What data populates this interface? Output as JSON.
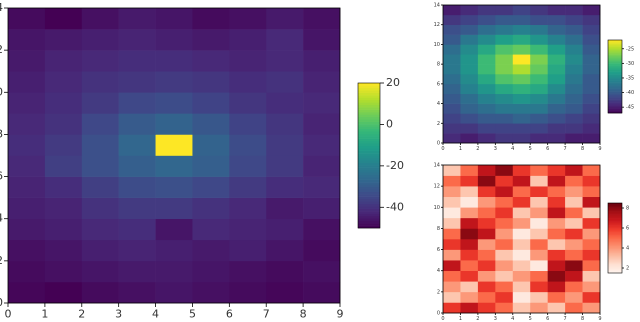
{
  "chart_data": [
    {
      "type": "heatmap",
      "colormap": "viridis",
      "xlim": [
        0,
        9
      ],
      "ylim": [
        0,
        14
      ],
      "xticks": [
        0,
        1,
        2,
        3,
        4,
        5,
        6,
        7,
        8,
        9
      ],
      "yticks": [
        0,
        2,
        4,
        6,
        8,
        10,
        12,
        14
      ],
      "zlim": [
        -50,
        20
      ],
      "zticks": [
        20,
        0,
        -20,
        -40
      ],
      "z": [
        [
          -49,
          -50,
          -48,
          -47,
          -46,
          -47,
          -48,
          -49,
          -48
        ],
        [
          -48,
          -47,
          -46,
          -45,
          -45,
          -46,
          -47,
          -48,
          -47
        ],
        [
          -47,
          -46,
          -44,
          -43,
          -44,
          -45,
          -44,
          -46,
          -48
        ],
        [
          -45,
          -44,
          -42,
          -41,
          -46,
          -42,
          -43,
          -44,
          -47
        ],
        [
          -44,
          -43,
          -40,
          -38,
          -38,
          -40,
          -42,
          -45,
          -44
        ],
        [
          -43,
          -41,
          -37,
          -34,
          -33,
          -35,
          -38,
          -41,
          -42
        ],
        [
          -42,
          -37,
          -33,
          -29,
          -27,
          -29,
          -35,
          -38,
          -43
        ],
        [
          -41,
          -38,
          -33,
          -27,
          20,
          -28,
          -34,
          -38,
          -42
        ],
        [
          -42,
          -40,
          -35,
          -30,
          -28,
          -31,
          -36,
          -39,
          -43
        ],
        [
          -43,
          -41,
          -38,
          -35,
          -34,
          -36,
          -39,
          -41,
          -42
        ],
        [
          -44,
          -42,
          -40,
          -39,
          -38,
          -39,
          -41,
          -40,
          -43
        ],
        [
          -45,
          -43,
          -42,
          -41,
          -41,
          -42,
          -43,
          -42,
          -44
        ],
        [
          -46,
          -45,
          -44,
          -43,
          -44,
          -45,
          -44,
          -42,
          -46
        ],
        [
          -48,
          -50,
          -47,
          -45,
          -46,
          -48,
          -47,
          -45,
          -47
        ]
      ]
    },
    {
      "type": "heatmap",
      "colormap": "viridis",
      "xlim": [
        0,
        9
      ],
      "ylim": [
        0,
        14
      ],
      "xticks": [
        0,
        1,
        2,
        3,
        4,
        5,
        6,
        7,
        8,
        9
      ],
      "yticks": [
        0,
        2,
        4,
        6,
        8,
        10,
        12,
        14
      ],
      "zlim": [
        -47,
        -22
      ],
      "zticks": [
        -25,
        -30,
        -35,
        -40,
        -45
      ],
      "z": [
        [
          -44,
          -45,
          -44,
          -43,
          -43,
          -44,
          -44,
          -45,
          -45
        ],
        [
          -43,
          -43,
          -42,
          -42,
          -42,
          -42,
          -43,
          -43,
          -44
        ],
        [
          -42,
          -41,
          -40,
          -40,
          -39,
          -40,
          -41,
          -42,
          -43
        ],
        [
          -41,
          -39,
          -38,
          -37,
          -37,
          -37,
          -39,
          -40,
          -42
        ],
        [
          -40,
          -38,
          -36,
          -35,
          -34,
          -35,
          -37,
          -39,
          -41
        ],
        [
          -39,
          -36,
          -34,
          -32,
          -31,
          -32,
          -35,
          -38,
          -40
        ],
        [
          -38,
          -35,
          -32,
          -29,
          -28,
          -30,
          -33,
          -37,
          -40
        ],
        [
          -37,
          -34,
          -30,
          -27,
          -25,
          -28,
          -32,
          -36,
          -39
        ],
        [
          -37,
          -34,
          -30,
          -27,
          -22,
          -27,
          -31,
          -35,
          -39
        ],
        [
          -38,
          -35,
          -32,
          -29,
          -28,
          -30,
          -33,
          -36,
          -40
        ],
        [
          -40,
          -37,
          -35,
          -33,
          -32,
          -34,
          -36,
          -38,
          -41
        ],
        [
          -41,
          -40,
          -38,
          -37,
          -36,
          -37,
          -39,
          -40,
          -42
        ],
        [
          -43,
          -42,
          -41,
          -40,
          -40,
          -41,
          -41,
          -42,
          -43
        ],
        [
          -45,
          -44,
          -43,
          -43,
          -42,
          -43,
          -44,
          -44,
          -45
        ]
      ]
    },
    {
      "type": "heatmap",
      "colormap": "Reds",
      "xlim": [
        0,
        9
      ],
      "ylim": [
        0,
        14
      ],
      "xticks": [
        0,
        1,
        2,
        3,
        4,
        5,
        6,
        7,
        8,
        9
      ],
      "yticks": [
        0,
        2,
        4,
        6,
        8,
        10,
        12,
        14
      ],
      "zlim": [
        1.5,
        8.5
      ],
      "zticks": [
        8,
        6,
        4,
        2
      ],
      "z": [
        [
          6,
          7,
          6,
          5,
          3,
          4,
          3,
          5,
          4
        ],
        [
          3,
          4,
          5,
          6,
          2,
          3,
          5,
          4,
          6
        ],
        [
          4,
          3,
          6,
          5,
          3,
          6,
          7,
          5,
          4
        ],
        [
          5,
          6,
          4,
          3,
          4,
          5,
          8,
          7,
          3
        ],
        [
          7,
          5,
          6,
          4,
          3,
          2,
          7,
          8,
          5
        ],
        [
          4,
          6,
          5,
          3,
          2,
          4,
          6,
          5,
          6
        ],
        [
          6,
          7,
          4,
          5,
          3,
          5,
          3,
          4,
          5
        ],
        [
          5,
          8,
          7,
          4,
          2,
          3,
          5,
          6,
          4
        ],
        [
          3,
          7,
          6,
          5,
          4,
          2,
          4,
          3,
          6
        ],
        [
          2,
          4,
          5,
          6,
          3,
          4,
          7,
          5,
          3
        ],
        [
          3,
          2,
          4,
          5,
          6,
          3,
          6,
          3,
          7
        ],
        [
          4,
          3,
          6,
          7,
          5,
          6,
          5,
          4,
          5
        ],
        [
          5,
          6,
          8,
          6,
          7,
          3,
          7,
          5,
          6
        ],
        [
          3,
          5,
          7,
          8,
          6,
          5,
          6,
          7,
          5
        ]
      ]
    }
  ]
}
